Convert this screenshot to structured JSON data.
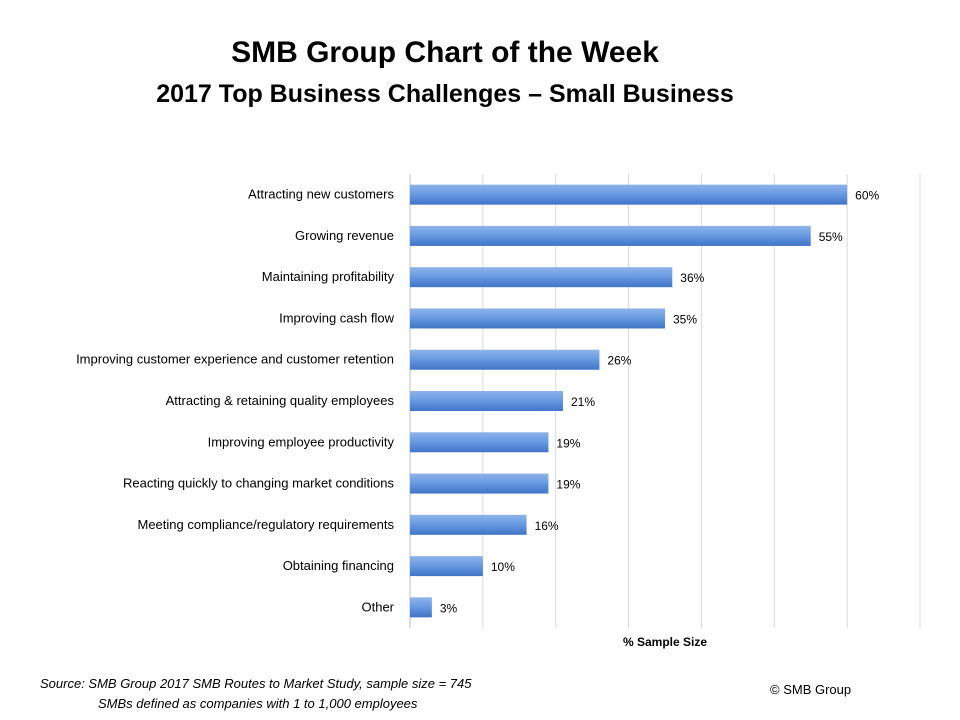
{
  "header": {
    "title": "SMB Group Chart of the Week",
    "subtitle": "2017 Top Business Challenges – Small Business"
  },
  "chart_data": {
    "type": "bar",
    "orientation": "horizontal",
    "categories": [
      "Attracting new customers",
      "Growing revenue",
      "Maintaining profitability",
      "Improving cash flow",
      "Improving customer experience and customer retention",
      "Attracting & retaining quality employees",
      "Improving employee productivity",
      "Reacting quickly to changing market conditions",
      "Meeting compliance/regulatory requirements",
      "Obtaining financing",
      "Other"
    ],
    "values": [
      60,
      55,
      36,
      35,
      26,
      21,
      19,
      19,
      16,
      10,
      3
    ],
    "value_labels": [
      "60%",
      "55%",
      "36%",
      "35%",
      "26%",
      "21%",
      "19%",
      "19%",
      "16%",
      "10%",
      "3%"
    ],
    "xlabel": "% Sample Size",
    "xlim": [
      0,
      70
    ],
    "grid": true,
    "bar_color": "#5b8fd9"
  },
  "footer": {
    "source_line1": "Source: SMB Group 2017 SMB Routes to Market Study, sample size = 745",
    "source_line2": "SMBs defined as companies with 1 to 1,000 employees",
    "copyright": "© SMB Group"
  }
}
